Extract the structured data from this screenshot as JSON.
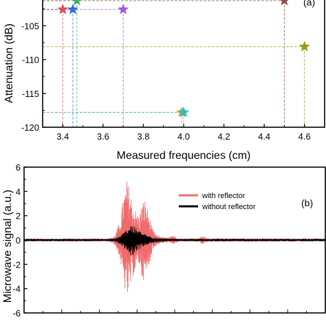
{
  "chart_data": [
    {
      "type": "scatter",
      "panel_label": "(a)",
      "xlabel": "Measured frequencies (cm)",
      "ylabel": "Attenuation (dB)",
      "xlim": [
        3.3,
        4.7
      ],
      "ylim": [
        -120,
        -101
      ],
      "xticks": [
        "3.4",
        "3.6",
        "3.8",
        "4.0",
        "4.2",
        "4.4",
        "4.6"
      ],
      "xtick_values": [
        3.4,
        3.6,
        3.8,
        4.0,
        4.2,
        4.4,
        4.6
      ],
      "yticks": [
        "-105",
        "-110",
        "-115",
        "-120"
      ],
      "ytick_values": [
        -105,
        -110,
        -115,
        -120
      ],
      "marker": "star",
      "guide_lines": "dashed drop lines to both axes",
      "grid": false,
      "points": [
        {
          "x": 3.4,
          "y": -102.6,
          "color": "#e0505a"
        },
        {
          "x": 3.45,
          "y": -102.6,
          "color": "#2f6fe0"
        },
        {
          "x": 3.47,
          "y": -101.3,
          "color": "#3cb36a"
        },
        {
          "x": 3.7,
          "y": -102.6,
          "color": "#a25ad8"
        },
        {
          "x": 3.99,
          "y": -117.8,
          "color": "#e0a030"
        },
        {
          "x": 4.0,
          "y": -117.8,
          "color": "#20c0c8"
        },
        {
          "x": 4.5,
          "y": -101.3,
          "color": "#8a5050"
        },
        {
          "x": 4.6,
          "y": -108.1,
          "color": "#9a9a10"
        }
      ]
    },
    {
      "type": "line",
      "panel_label": "(b)",
      "ylabel": "Microwave signal (a.u.)",
      "ylim": [
        -6,
        6
      ],
      "yticks": [
        "6",
        "4",
        "2",
        "0",
        "-2",
        "-4",
        "-6"
      ],
      "ytick_values": [
        6,
        4,
        2,
        0,
        -2,
        -4,
        -6
      ],
      "grid": false,
      "legend_position": "top-right",
      "series": [
        {
          "name": "with reflector",
          "color": "#f06b6b",
          "noise_amplitude": 0.12,
          "envelope": [
            {
              "t": 0.0,
              "a": 0.12
            },
            {
              "t": 0.28,
              "a": 0.12
            },
            {
              "t": 0.3,
              "a": 0.35
            },
            {
              "t": 0.318,
              "a": 1.5
            },
            {
              "t": 0.33,
              "a": 3.6
            },
            {
              "t": 0.342,
              "a": 5.0
            },
            {
              "t": 0.352,
              "a": 4.1
            },
            {
              "t": 0.362,
              "a": 3.0
            },
            {
              "t": 0.372,
              "a": 2.4
            },
            {
              "t": 0.382,
              "a": 2.0
            },
            {
              "t": 0.392,
              "a": 3.2
            },
            {
              "t": 0.402,
              "a": 3.4
            },
            {
              "t": 0.414,
              "a": 2.2
            },
            {
              "t": 0.426,
              "a": 0.9
            },
            {
              "t": 0.44,
              "a": 0.4
            },
            {
              "t": 0.47,
              "a": 0.2
            },
            {
              "t": 0.5,
              "a": 0.35
            },
            {
              "t": 0.512,
              "a": 0.12
            },
            {
              "t": 0.58,
              "a": 0.15
            },
            {
              "t": 0.592,
              "a": 0.4
            },
            {
              "t": 0.605,
              "a": 0.15
            },
            {
              "t": 1.0,
              "a": 0.12
            }
          ]
        },
        {
          "name": "without reflector",
          "color": "#000000",
          "noise_amplitude": 0.1,
          "envelope": [
            {
              "t": 0.0,
              "a": 0.1
            },
            {
              "t": 0.3,
              "a": 0.1
            },
            {
              "t": 0.322,
              "a": 0.4
            },
            {
              "t": 0.34,
              "a": 0.9
            },
            {
              "t": 0.354,
              "a": 1.4
            },
            {
              "t": 0.366,
              "a": 1.1
            },
            {
              "t": 0.38,
              "a": 0.8
            },
            {
              "t": 0.4,
              "a": 0.5
            },
            {
              "t": 0.42,
              "a": 0.3
            },
            {
              "t": 0.45,
              "a": 0.15
            },
            {
              "t": 0.5,
              "a": 0.1
            },
            {
              "t": 1.0,
              "a": 0.1
            }
          ]
        }
      ]
    }
  ]
}
